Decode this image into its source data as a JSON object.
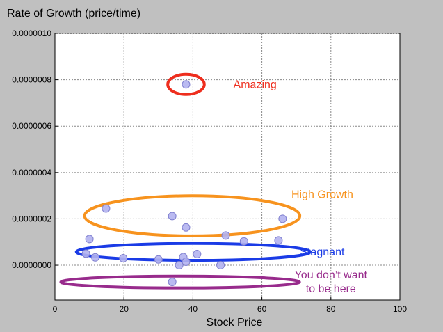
{
  "chart_data": {
    "type": "scatter",
    "title": "Rate of Growth  (price/time)",
    "xlabel": "Stock Price",
    "ylabel": "",
    "xlim": [
      0,
      100
    ],
    "ylim": [
      -1.5e-07,
      1e-06
    ],
    "grid": true,
    "x_ticks": [
      0,
      20,
      40,
      60,
      80,
      100
    ],
    "y_ticks": [
      0,
      2e-07,
      4e-07,
      6e-07,
      8e-07,
      1e-06
    ],
    "x_tick_labels": [
      "0",
      "20",
      "40",
      "60",
      "80",
      "100"
    ],
    "y_tick_labels": [
      "0.0000000",
      "0.0000002",
      "0.0000004",
      "0.0000006",
      "0.0000008",
      "0.0000010"
    ],
    "point_color": "#b3b3f0",
    "point_stroke": "#7f7fcf",
    "points": [
      {
        "x": 38.0,
        "y": 7.8e-07
      },
      {
        "x": 14.8,
        "y": 2.45e-07
      },
      {
        "x": 34.0,
        "y": 2.12e-07
      },
      {
        "x": 38.0,
        "y": 1.63e-07
      },
      {
        "x": 66.0,
        "y": 2e-07
      },
      {
        "x": 49.5,
        "y": 1.28e-07
      },
      {
        "x": 54.8,
        "y": 1.03e-07
      },
      {
        "x": 64.8,
        "y": 1.07e-07
      },
      {
        "x": 10.0,
        "y": 1.13e-07
      },
      {
        "x": 9.0,
        "y": 5e-08
      },
      {
        "x": 11.7,
        "y": 3.4e-08
      },
      {
        "x": 19.8,
        "y": 3e-08
      },
      {
        "x": 30.0,
        "y": 2.5e-08
      },
      {
        "x": 37.2,
        "y": 3.5e-08
      },
      {
        "x": 41.2,
        "y": 4.8e-08
      },
      {
        "x": 38.0,
        "y": 1.5e-08
      },
      {
        "x": 36.0,
        "y": 0.0
      },
      {
        "x": 48.0,
        "y": 0.0
      },
      {
        "x": 34.0,
        "y": -7.2e-08
      }
    ],
    "annotations": [
      {
        "label": "Amazing",
        "color": "#ee2e1e",
        "cx": 38.0,
        "cy": 7.8e-07,
        "rx": 5.3,
        "ry": 4.35e-08,
        "text_x": 58.0,
        "text_y": 7.8e-07,
        "stroke_width": 4
      },
      {
        "label": "High Growth",
        "color": "#f7931e",
        "cx": 39.8,
        "cy": 2.13e-07,
        "rx": 31.2,
        "ry": 8.65e-08,
        "text_x": 77.5,
        "text_y": 3.05e-07,
        "stroke_width": 4
      },
      {
        "label": "Stagnant",
        "color": "#1a3be6",
        "cx": 40.1,
        "cy": 5.75e-08,
        "rx": 33.9,
        "ry": 3.65e-08,
        "text_x": 77.5,
        "text_y": 5.75e-08,
        "stroke_width": 4
      },
      {
        "label": "You don’t want\nto be here",
        "color": "#982b8c",
        "cx": 36.3,
        "cy": -7.25e-08,
        "rx": 34.6,
        "ry": 2.55e-08,
        "text_x": 80.0,
        "text_y": -7.25e-08,
        "stroke_width": 4
      }
    ]
  }
}
